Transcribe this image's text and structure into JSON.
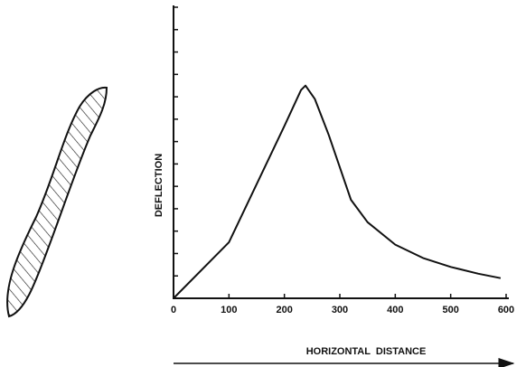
{
  "chart_data": {
    "type": "line",
    "y_label": "DEFLECTION",
    "x_label": "HORIZONTAL  DISTANCE",
    "x": [
      0,
      100,
      200,
      230,
      238,
      255,
      280,
      300,
      320,
      350,
      400,
      450,
      500,
      550,
      590
    ],
    "values": [
      0,
      2.5,
      7.7,
      9.3,
      9.5,
      8.9,
      7.3,
      5.85,
      4.4,
      3.4,
      2.4,
      1.8,
      1.4,
      1.1,
      0.9
    ],
    "color": "#111111",
    "xlim": [
      0,
      600
    ],
    "xticks": [
      0,
      100,
      200,
      300,
      400,
      500,
      600
    ],
    "ylim": [
      0,
      13
    ],
    "yticks": [
      0,
      1,
      2,
      3,
      4,
      5,
      6,
      7,
      8,
      9,
      10,
      11,
      12,
      13
    ]
  }
}
